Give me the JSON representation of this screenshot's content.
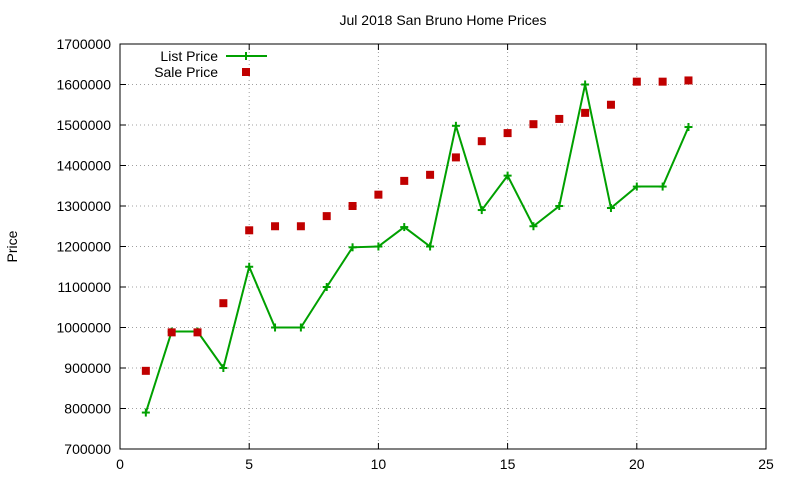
{
  "chart_data": {
    "type": "line",
    "title": "Jul 2018 San Bruno Home Prices",
    "xlabel": "",
    "ylabel": "Price",
    "xlim": [
      0,
      25
    ],
    "ylim": [
      700000,
      1700000
    ],
    "xticks": [
      "0",
      "5",
      "10",
      "15",
      "20",
      "25"
    ],
    "yticks": [
      "700000",
      "800000",
      "900000",
      "1000000",
      "1100000",
      "1200000",
      "1300000",
      "1400000",
      "1500000",
      "1600000",
      "1700000"
    ],
    "grid": true,
    "legend_position": "top-left",
    "series": [
      {
        "name": "List Price",
        "style": "line+cross",
        "color": "#00a000",
        "points": [
          [
            1,
            790000
          ],
          [
            2,
            990000
          ],
          [
            3,
            990000
          ],
          [
            4,
            900000
          ],
          [
            5,
            1150000
          ],
          [
            6,
            1000000
          ],
          [
            7,
            1000000
          ],
          [
            8,
            1100000
          ],
          [
            9,
            1198000
          ],
          [
            10,
            1200000
          ],
          [
            11,
            1248000
          ],
          [
            12,
            1200000
          ],
          [
            13,
            1498000
          ],
          [
            14,
            1290000
          ],
          [
            15,
            1375000
          ],
          [
            16,
            1250000
          ],
          [
            17,
            1300000
          ],
          [
            18,
            1600000
          ],
          [
            19,
            1295000
          ],
          [
            20,
            1348000
          ],
          [
            21,
            1348000
          ],
          [
            22,
            1495000
          ]
        ]
      },
      {
        "name": "Sale Price",
        "style": "square",
        "color": "#c00000",
        "points": [
          [
            1,
            893000
          ],
          [
            2,
            988000
          ],
          [
            3,
            988000
          ],
          [
            4,
            1060000
          ],
          [
            5,
            1240000
          ],
          [
            6,
            1250000
          ],
          [
            7,
            1250000
          ],
          [
            8,
            1275000
          ],
          [
            9,
            1300000
          ],
          [
            10,
            1328000
          ],
          [
            11,
            1362000
          ],
          [
            12,
            1377000
          ],
          [
            13,
            1420000
          ],
          [
            14,
            1460000
          ],
          [
            15,
            1480000
          ],
          [
            16,
            1502000
          ],
          [
            17,
            1515000
          ],
          [
            18,
            1530000
          ],
          [
            19,
            1550000
          ],
          [
            20,
            1607000
          ],
          [
            21,
            1607000
          ],
          [
            22,
            1610000
          ]
        ]
      }
    ]
  }
}
